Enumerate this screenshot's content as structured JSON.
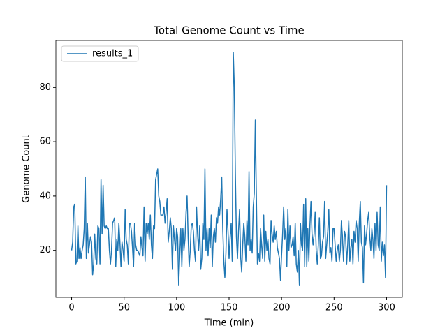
{
  "chart_data": {
    "type": "line",
    "title": "Total Genome Count vs Time",
    "xlabel": "Time (min)",
    "ylabel": "Genome Count",
    "xlim": [
      -15,
      315
    ],
    "xticks": [
      0,
      50,
      100,
      150,
      200,
      250,
      300
    ],
    "ylim": [
      2.7,
      97.3
    ],
    "yticks": [
      20,
      40,
      60,
      80
    ],
    "legend": "upper left",
    "grid": false,
    "x": [
      0,
      1,
      2,
      3,
      4,
      5,
      6,
      7,
      8,
      9,
      10,
      11,
      12,
      13,
      14,
      15,
      16,
      17,
      18,
      19,
      20,
      21,
      22,
      23,
      24,
      25,
      26,
      27,
      28,
      29,
      30,
      31,
      32,
      33,
      34,
      35,
      36,
      37,
      38,
      39,
      40,
      41,
      42,
      43,
      44,
      45,
      46,
      47,
      48,
      49,
      50,
      51,
      52,
      53,
      54,
      55,
      56,
      57,
      58,
      59,
      60,
      61,
      62,
      63,
      64,
      65,
      66,
      67,
      68,
      69,
      70,
      71,
      72,
      73,
      74,
      75,
      76,
      77,
      78,
      79,
      80,
      81,
      82,
      83,
      84,
      85,
      86,
      87,
      88,
      89,
      90,
      91,
      92,
      93,
      94,
      95,
      96,
      97,
      98,
      99,
      100,
      101,
      102,
      103,
      104,
      105,
      106,
      107,
      108,
      109,
      110,
      111,
      112,
      113,
      114,
      115,
      116,
      117,
      118,
      119,
      120,
      121,
      122,
      123,
      124,
      125,
      126,
      127,
      128,
      129,
      130,
      131,
      132,
      133,
      134,
      135,
      136,
      137,
      138,
      139,
      140,
      141,
      142,
      143,
      144,
      145,
      146,
      147,
      148,
      149,
      150,
      151,
      152,
      153,
      154,
      155,
      156,
      157,
      158,
      159,
      160,
      161,
      162,
      163,
      164,
      165,
      166,
      167,
      168,
      169,
      170,
      171,
      172,
      173,
      174,
      175,
      176,
      177,
      178,
      179,
      180,
      181,
      182,
      183,
      184,
      185,
      186,
      187,
      188,
      189,
      190,
      191,
      192,
      193,
      194,
      195,
      196,
      197,
      198,
      199,
      200,
      201,
      202,
      203,
      204,
      205,
      206,
      207,
      208,
      209,
      210,
      211,
      212,
      213,
      214,
      215,
      216,
      217,
      218,
      219,
      220,
      221,
      222,
      223,
      224,
      225,
      226,
      227,
      228,
      229,
      230,
      231,
      232,
      233,
      234,
      235,
      236,
      237,
      238,
      239,
      240,
      241,
      242,
      243,
      244,
      245,
      246,
      247,
      248,
      249,
      250,
      251,
      252,
      253,
      254,
      255,
      256,
      257,
      258,
      259,
      260,
      261,
      262,
      263,
      264,
      265,
      266,
      267,
      268,
      269,
      270,
      271,
      272,
      273,
      274,
      275,
      276,
      277,
      278,
      279,
      280,
      281,
      282,
      283,
      284,
      285,
      286,
      287,
      288,
      289,
      290,
      291,
      292,
      293,
      294,
      295,
      296,
      297,
      298,
      299,
      300
    ],
    "series": [
      {
        "name": "results_1",
        "color": "#1f77b4",
        "values": [
          20,
          23,
          36,
          37,
          15,
          16,
          29,
          17,
          21,
          17,
          20,
          22,
          28,
          47,
          17,
          30,
          19,
          22,
          25,
          23,
          11,
          15,
          26,
          17,
          15,
          29,
          28,
          15,
          46,
          26,
          44,
          29,
          28,
          29,
          28,
          28,
          20,
          15,
          20,
          30,
          31,
          32,
          14,
          24,
          20,
          30,
          23,
          14,
          23,
          20,
          16,
          35,
          24,
          22,
          15,
          30,
          30,
          27,
          21,
          14,
          30,
          22,
          20,
          20,
          19,
          18,
          25,
          21,
          18,
          36,
          16,
          30,
          26,
          30,
          24,
          33,
          22,
          17,
          29,
          28,
          46,
          48,
          50,
          40,
          38,
          33,
          33,
          33,
          36,
          30,
          34,
          39,
          23,
          27,
          32,
          28,
          13,
          29,
          24,
          20,
          28,
          25,
          7,
          18,
          28,
          14,
          28,
          20,
          24,
          34,
          40,
          25,
          14,
          20,
          29,
          30,
          27,
          20,
          16,
          36,
          26,
          20,
          29,
          13,
          17,
          30,
          24,
          50,
          20,
          28,
          18,
          28,
          21,
          33,
          14,
          25,
          28,
          23,
          32,
          30,
          36,
          33,
          39,
          47,
          28,
          16,
          10,
          19,
          35,
          27,
          17,
          25,
          30,
          16,
          93,
          80,
          48,
          25,
          17,
          27,
          35,
          18,
          12,
          22,
          30,
          25,
          16,
          31,
          22,
          49,
          20,
          24,
          19,
          36,
          41,
          68,
          40,
          15,
          19,
          16,
          28,
          22,
          17,
          33,
          16,
          27,
          20,
          24,
          17,
          15,
          31,
          26,
          23,
          29,
          24,
          27,
          21,
          19,
          17,
          9,
          18,
          26,
          36,
          24,
          28,
          14,
          35,
          20,
          29,
          21,
          22,
          25,
          18,
          30,
          15,
          12,
          20,
          7,
          30,
          22,
          20,
          37,
          14,
          39,
          14,
          28,
          16,
          29,
          38,
          26,
          22,
          26,
          34,
          20,
          15,
          22,
          32,
          17,
          18,
          23,
          25,
          38,
          17,
          22,
          27,
          35,
          19,
          21,
          16,
          28,
          28,
          22,
          16,
          20,
          22,
          16,
          20,
          31,
          25,
          16,
          27,
          25,
          15,
          22,
          31,
          16,
          21,
          24,
          15,
          27,
          23,
          31,
          28,
          16,
          30,
          38,
          23,
          21,
          8,
          29,
          22,
          26,
          31,
          34,
          25,
          20,
          28,
          24,
          17,
          30,
          20,
          34,
          22,
          20,
          36,
          16,
          23,
          18,
          22,
          10,
          44
        ]
      }
    ]
  }
}
